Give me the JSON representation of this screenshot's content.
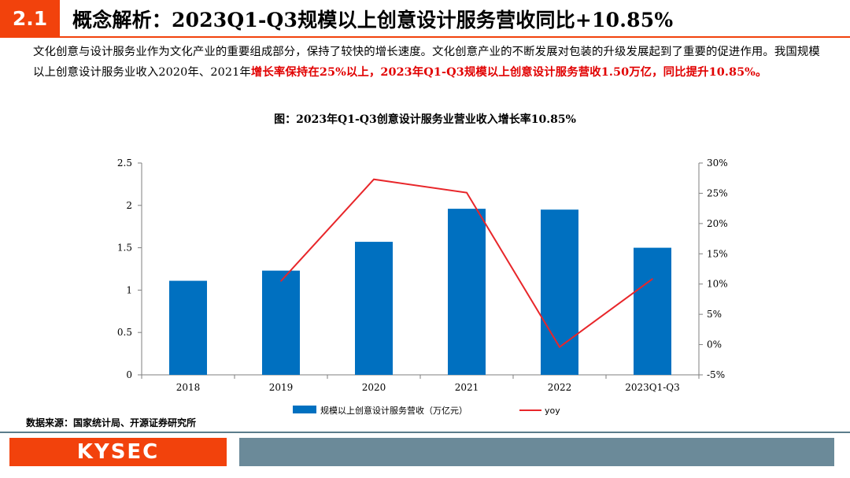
{
  "header": {
    "section_number": "2.1",
    "title": "概念解析：2023Q1-Q3规模以上创意设计服务营收同比+10.85%"
  },
  "intro": {
    "text_plain": "文化创意与设计服务业作为文化产业的重要组成部分，保持了较快的增长速度。文化创意产业的不断发展对包装的升级发展起到了重要的促进作用。我国规模以上创意设计服务业收入2020年、2021年",
    "text_highlight": "增长率保持在25%以上，2023年Q1-Q3规模以上创意设计服务营收1.50万亿，同比提升10.85%。"
  },
  "figure_title": "图：2023年Q1-Q3创意设计服务业营业收入增长率10.85%",
  "chart_data": {
    "type": "bar",
    "categories": [
      "2018",
      "2019",
      "2020",
      "2021",
      "2022",
      "2023Q1-Q3"
    ],
    "series": [
      {
        "name": "规模以上创意设计服务营收（万亿元）",
        "type": "bar",
        "axis": "left",
        "color": "#0070c0",
        "values": [
          1.11,
          1.23,
          1.57,
          1.96,
          1.95,
          1.5
        ]
      },
      {
        "name": "yoy",
        "type": "line",
        "axis": "right",
        "color": "#e8262a",
        "values": [
          null,
          10.5,
          27.3,
          25.1,
          -0.4,
          10.85
        ]
      }
    ],
    "y_left": {
      "min": 0,
      "max": 2.5,
      "ticks": [
        "0",
        "0.5",
        "1",
        "1.5",
        "2",
        "2.5"
      ],
      "tick_values": [
        0,
        0.5,
        1,
        1.5,
        2,
        2.5
      ]
    },
    "y_right": {
      "min": -5,
      "max": 30,
      "ticks": [
        "-5%",
        "0%",
        "5%",
        "10%",
        "15%",
        "20%",
        "25%",
        "30%"
      ],
      "tick_values": [
        -5,
        0,
        5,
        10,
        15,
        20,
        25,
        30
      ]
    },
    "grid": false,
    "legend_position": "bottom"
  },
  "source_text": "数据来源：国家统计局、开源证券研究所",
  "footer": {
    "logo": "KYSEC"
  }
}
